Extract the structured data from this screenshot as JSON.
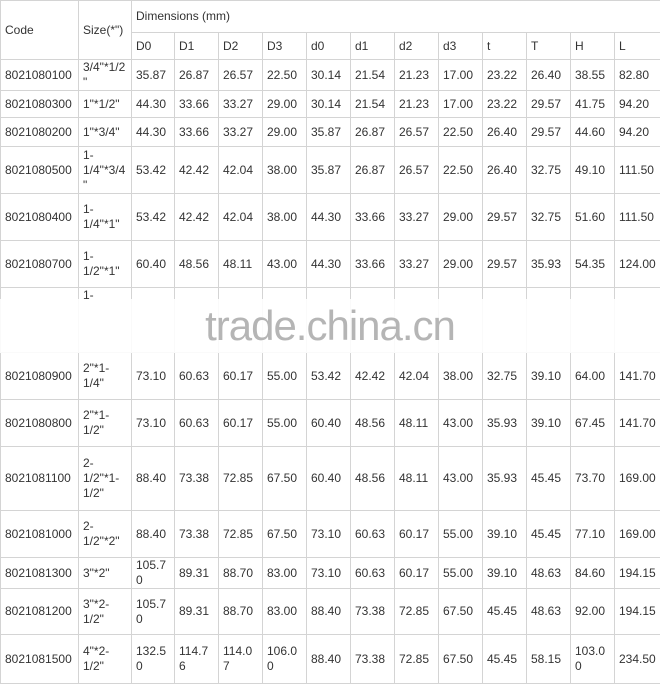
{
  "table": {
    "header": {
      "code": "Code",
      "size": "Size(*\")",
      "dimensions": "Dimensions (mm)",
      "columns": [
        "D0",
        "D1",
        "D2",
        "D3",
        "d0",
        "d1",
        "d2",
        "d3",
        "t",
        "T",
        "H",
        "L"
      ]
    },
    "rows": [
      {
        "code": "8021080100",
        "size": "3/4\"*1/2\"",
        "values": [
          "35.87",
          "26.87",
          "26.57",
          "22.50",
          "30.14",
          "21.54",
          "21.23",
          "17.00",
          "23.22",
          "26.40",
          "38.55",
          "82.80"
        ]
      },
      {
        "code": "8021080300",
        "size": "1\"*1/2\"",
        "values": [
          "44.30",
          "33.66",
          "33.27",
          "29.00",
          "30.14",
          "21.54",
          "21.23",
          "17.00",
          "23.22",
          "29.57",
          "41.75",
          "94.20"
        ]
      },
      {
        "code": "8021080200",
        "size": "1\"*3/4\"",
        "values": [
          "44.30",
          "33.66",
          "33.27",
          "29.00",
          "35.87",
          "26.87",
          "26.57",
          "22.50",
          "26.40",
          "29.57",
          "44.60",
          "94.20"
        ]
      },
      {
        "code": "8021080500",
        "size": "1-1/4\"*3/4\"",
        "values": [
          "53.42",
          "42.42",
          "42.04",
          "38.00",
          "35.87",
          "26.87",
          "26.57",
          "22.50",
          "26.40",
          "32.75",
          "49.10",
          "111.50"
        ]
      },
      {
        "code": "8021080400",
        "size": "1-1/4\"*1\"",
        "values": [
          "53.42",
          "42.42",
          "42.04",
          "38.00",
          "44.30",
          "33.66",
          "33.27",
          "29.00",
          "29.57",
          "32.75",
          "51.60",
          "111.50"
        ]
      },
      {
        "code": "8021080700",
        "size": "1-1/2\"*1\"",
        "values": [
          "60.40",
          "48.56",
          "48.11",
          "43.00",
          "44.30",
          "33.66",
          "33.27",
          "29.00",
          "29.57",
          "35.93",
          "54.35",
          "124.00"
        ]
      },
      {
        "size": "1-"
      },
      {
        "code": "8021080900",
        "size": "2\"*1-1/4\"",
        "values": [
          "73.10",
          "60.63",
          "60.17",
          "55.00",
          "53.42",
          "42.42",
          "42.04",
          "38.00",
          "32.75",
          "39.10",
          "64.00",
          "141.70"
        ]
      },
      {
        "code": "8021080800",
        "size": "2\"*1-1/2\"",
        "values": [
          "73.10",
          "60.63",
          "60.17",
          "55.00",
          "60.40",
          "48.56",
          "48.11",
          "43.00",
          "35.93",
          "39.10",
          "67.45",
          "141.70"
        ]
      },
      {
        "code": "8021081100",
        "size": "2-1/2\"*1-1/2\"",
        "values": [
          "88.40",
          "73.38",
          "72.85",
          "67.50",
          "60.40",
          "48.56",
          "48.11",
          "43.00",
          "35.93",
          "45.45",
          "73.70",
          "169.00"
        ]
      },
      {
        "code": "8021081000",
        "size": "2-1/2\"*2\"",
        "values": [
          "88.40",
          "73.38",
          "72.85",
          "67.50",
          "73.10",
          "60.63",
          "60.17",
          "55.00",
          "39.10",
          "45.45",
          "77.10",
          "169.00"
        ]
      },
      {
        "code": "8021081300",
        "size": "3\"*2\"",
        "values": [
          "105.70",
          "89.31",
          "88.70",
          "83.00",
          "73.10",
          "60.63",
          "60.17",
          "55.00",
          "39.10",
          "48.63",
          "84.60",
          "194.15"
        ]
      },
      {
        "code": "8021081200",
        "size": "3\"*2-1/2\"",
        "values": [
          "105.70",
          "89.31",
          "88.70",
          "83.00",
          "88.40",
          "73.38",
          "72.85",
          "67.50",
          "45.45",
          "48.63",
          "92.00",
          "194.15"
        ]
      },
      {
        "code": "8021081500",
        "size": "4\"*2-1/2\"",
        "values": [
          "132.50",
          "114.76",
          "114.07",
          "106.00",
          "88.40",
          "73.38",
          "72.85",
          "67.50",
          "45.45",
          "58.15",
          "103.00",
          "234.50"
        ]
      }
    ]
  },
  "watermark": "trade.china.cn"
}
